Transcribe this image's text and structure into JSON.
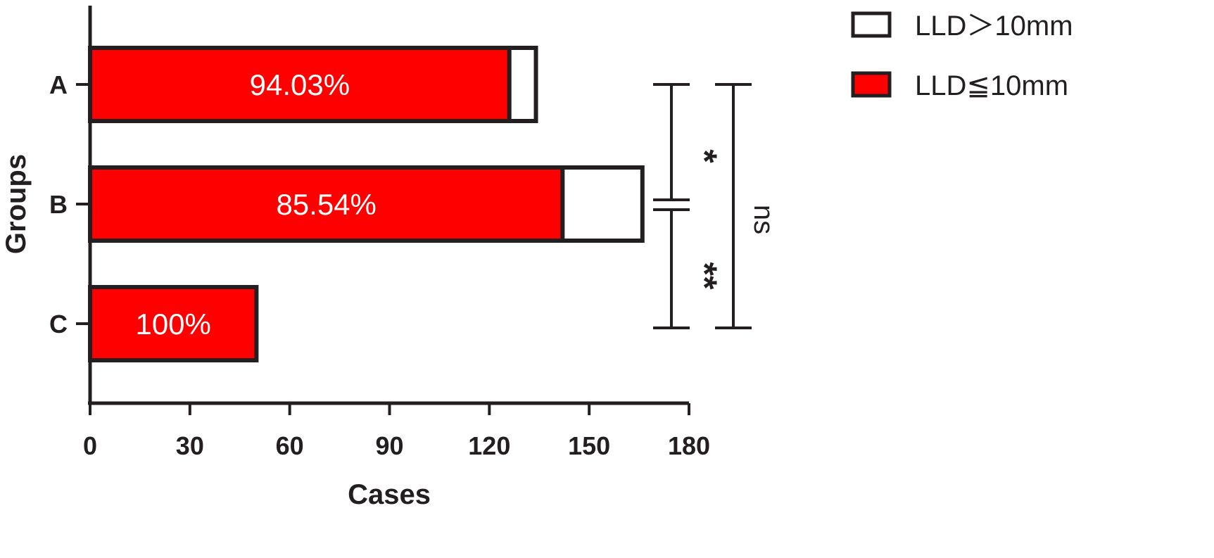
{
  "chart_data": {
    "type": "bar",
    "orientation": "horizontal",
    "stacked": true,
    "categories": [
      "A",
      "B",
      "C"
    ],
    "series": [
      {
        "name": "LLD≦10mm",
        "values": [
          126,
          142,
          50
        ],
        "color": "#ff0000"
      },
      {
        "name": "LLD＞10mm",
        "values": [
          8,
          24,
          0
        ],
        "color": "#ffffff"
      }
    ],
    "data_labels": [
      "94.03%",
      "85.54%",
      "100%"
    ],
    "xlabel": "Cases",
    "ylabel": "Groups",
    "xlim": [
      0,
      180
    ],
    "xticks": [
      "0",
      "30",
      "60",
      "90",
      "120",
      "150",
      "180"
    ],
    "grid": false,
    "legend_position": "top-right",
    "significance": [
      {
        "from": "A",
        "to": "B",
        "label": "*"
      },
      {
        "from": "B",
        "to": "C",
        "label": "**"
      },
      {
        "from": "A",
        "to": "C",
        "label": "ns"
      }
    ]
  }
}
